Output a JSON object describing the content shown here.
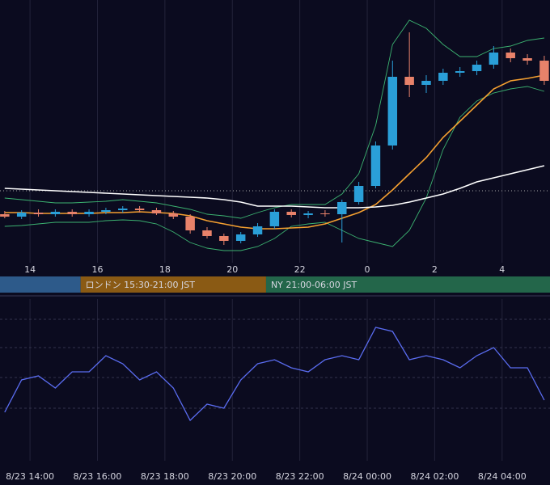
{
  "chart_data": [
    {
      "type": "candlestick",
      "x": [
        13.25,
        13.75,
        14.25,
        14.75,
        15.25,
        15.75,
        16.25,
        16.75,
        17.25,
        17.75,
        18.25,
        18.75,
        19.25,
        19.75,
        20.25,
        20.75,
        21.25,
        21.75,
        22.25,
        22.75,
        23.25,
        23.75,
        24.25,
        24.75,
        25.25,
        25.75,
        26.25,
        26.75,
        27.25,
        27.75,
        28.25,
        28.75,
        29.25
      ],
      "open": [
        60,
        57,
        62,
        60,
        63,
        60,
        63,
        65,
        67,
        65,
        61,
        57,
        40,
        33,
        27,
        35,
        45,
        63,
        59,
        61,
        60,
        75,
        95,
        145,
        230,
        220,
        225,
        235,
        237,
        245,
        260,
        253,
        250
      ],
      "high": [
        64,
        65,
        66,
        66,
        66,
        66,
        68,
        70,
        70,
        68,
        64,
        60,
        44,
        36,
        38,
        49,
        66,
        66,
        64,
        65,
        78,
        100,
        150,
        250,
        285,
        232,
        240,
        242,
        250,
        268,
        265,
        258,
        256
      ],
      "low": [
        55,
        54,
        57,
        57,
        57,
        57,
        60,
        62,
        62,
        59,
        54,
        36,
        30,
        22,
        24,
        32,
        42,
        56,
        55,
        57,
        25,
        72,
        92,
        140,
        205,
        210,
        220,
        230,
        232,
        240,
        248,
        245,
        220
      ],
      "close": [
        57,
        62,
        60,
        63,
        60,
        63,
        65,
        67,
        65,
        61,
        57,
        40,
        33,
        27,
        35,
        45,
        63,
        59,
        61,
        60,
        75,
        95,
        145,
        230,
        220,
        225,
        235,
        237,
        245,
        260,
        253,
        250,
        225
      ],
      "up_color": "#2a9fd8",
      "down_color": "#e8826a",
      "series": [
        {
          "color": "#3cb371",
          "values": [
            80,
            78,
            76,
            74,
            74,
            75,
            76,
            78,
            76,
            74,
            70,
            66,
            60,
            58,
            55,
            62,
            68,
            72,
            72,
            72,
            85,
            110,
            170,
            270,
            300,
            290,
            270,
            255,
            255,
            265,
            268,
            275,
            278
          ]
        },
        {
          "color": "#3cb371",
          "values": [
            45,
            46,
            48,
            50,
            50,
            50,
            52,
            53,
            52,
            48,
            38,
            25,
            18,
            15,
            15,
            20,
            30,
            45,
            48,
            50,
            40,
            30,
            25,
            20,
            40,
            80,
            140,
            180,
            200,
            210,
            215,
            218,
            212
          ]
        },
        {
          "color": "#f5a030",
          "values": [
            62,
            62,
            61,
            61,
            61,
            61,
            62,
            62,
            63,
            62,
            61,
            58,
            52,
            48,
            44,
            42,
            42,
            43,
            44,
            48,
            55,
            62,
            72,
            90,
            110,
            130,
            155,
            175,
            195,
            215,
            225,
            228,
            232
          ]
        },
        {
          "color": "#ffffff",
          "values": [
            92,
            91,
            90,
            89,
            88,
            87,
            86,
            85,
            84,
            83,
            82,
            81,
            80,
            78,
            75,
            70,
            70,
            70,
            69,
            68,
            68,
            68,
            69,
            71,
            75,
            80,
            85,
            92,
            100,
            105,
            110,
            115,
            120
          ]
        }
      ],
      "price_line": 89,
      "xlim": [
        13.11,
        29.42
      ],
      "ylim": [
        0,
        325
      ],
      "xticks": [
        14,
        16,
        18,
        20,
        22,
        {
          "value": 24,
          "label": "0"
        },
        {
          "value": 26,
          "label": "2"
        },
        {
          "value": 28,
          "label": "4"
        }
      ],
      "sessions": [
        {
          "start": 13.11,
          "end": 15.5,
          "color": "#2d5a8a"
        },
        {
          "label": "ロンドン 15:30-21:00 JST",
          "start": 15.5,
          "end": 21,
          "color": "#8a5a14"
        },
        {
          "label": "NY 21:00-06:00 JST",
          "start": 21,
          "end": 29.42,
          "color": "#23664a"
        }
      ]
    },
    {
      "type": "line",
      "x": [
        13.25,
        13.75,
        14.25,
        14.75,
        15.25,
        15.75,
        16.25,
        16.75,
        17.25,
        17.75,
        18.25,
        18.75,
        19.25,
        19.75,
        20.25,
        20.75,
        21.25,
        21.75,
        22.25,
        22.75,
        23.25,
        23.75,
        24.25,
        24.75,
        25.25,
        25.75,
        26.25,
        26.75,
        27.25,
        27.75,
        28.25,
        28.75,
        29.25
      ],
      "values": [
        60,
        100,
        105,
        90,
        110,
        110,
        130,
        120,
        100,
        110,
        90,
        50,
        70,
        65,
        100,
        120,
        125,
        115,
        110,
        125,
        130,
        125,
        165,
        160,
        125,
        130,
        125,
        115,
        130,
        140,
        115,
        115,
        75
      ],
      "color": "#5a6cf0",
      "xlim": [
        13.11,
        29.42
      ],
      "ylim": [
        0,
        200
      ],
      "gridlines": [
        175,
        140,
        103,
        65
      ],
      "xticks": [
        {
          "value": 14,
          "label": "8/23 14:00"
        },
        {
          "value": 16,
          "label": "8/23 16:00"
        },
        {
          "value": 18,
          "label": "8/23 18:00"
        },
        {
          "value": 20,
          "label": "8/23 20:00"
        },
        {
          "value": 22,
          "label": "8/23 22:00"
        },
        {
          "value": 24,
          "label": "8/24 00:00"
        },
        {
          "value": 26,
          "label": "8/24 02:00"
        },
        {
          "value": 28,
          "label": "8/24 04:00"
        }
      ]
    }
  ]
}
